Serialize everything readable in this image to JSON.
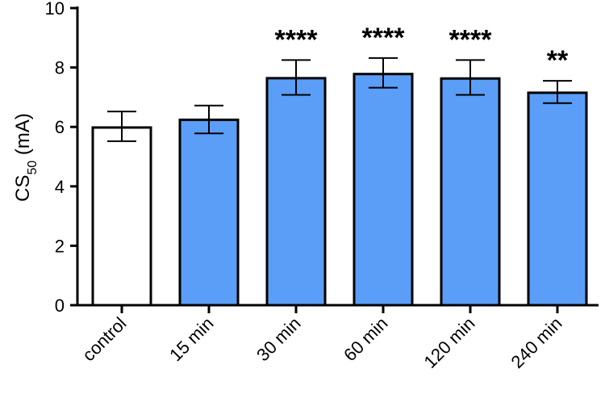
{
  "chart_data": {
    "type": "bar",
    "categories": [
      "control",
      "15 min",
      "30 min",
      "60 min",
      "120 min",
      "240 min"
    ],
    "values": [
      5.98,
      6.24,
      7.64,
      7.78,
      7.63,
      7.15
    ],
    "error_low": [
      5.52,
      5.78,
      7.08,
      7.32,
      7.08,
      6.8
    ],
    "error_high": [
      6.52,
      6.72,
      8.25,
      8.32,
      8.25,
      7.55
    ],
    "bar_colors": [
      "#ffffff",
      "#5b9ef7",
      "#5b9ef7",
      "#5b9ef7",
      "#5b9ef7",
      "#5b9ef7"
    ],
    "significance": [
      "",
      "",
      "****",
      "****",
      "****",
      "**"
    ],
    "ylabel_main": "CS",
    "ylabel_sub": "50",
    "ylabel_unit": " (mA)",
    "ylim": [
      0,
      10
    ],
    "yticks": [
      0,
      2,
      4,
      6,
      8,
      10
    ],
    "grid": false,
    "legend": "none"
  }
}
